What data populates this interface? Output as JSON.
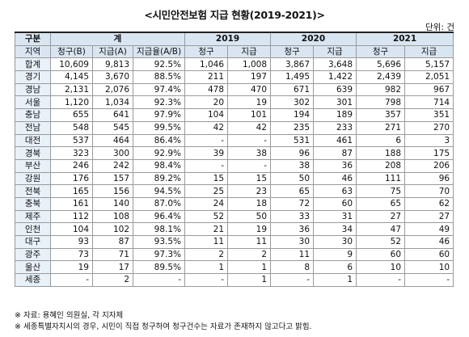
{
  "title": "<시민안전보험 지급 현황(2019-2021)>",
  "unit": "단위: 건",
  "header": {
    "col1": "구분",
    "group_total": "계",
    "group_2019": "2019",
    "group_2020": "2020",
    "group_2021": "2021",
    "region": "지역",
    "claim_b": "청구(B)",
    "pay_a": "지급(A)",
    "rate": "지급율(A/B)",
    "claim": "청구",
    "pay": "지급"
  },
  "rows": [
    {
      "region": "합계",
      "claim_b": "10,609",
      "pay_a": "9,813",
      "rate": "92.5%",
      "c19": "1,046",
      "p19": "1,008",
      "c20": "3,867",
      "p20": "3,648",
      "c21": "5,696",
      "p21": "5,157"
    },
    {
      "region": "경기",
      "claim_b": "4,145",
      "pay_a": "3,670",
      "rate": "88.5%",
      "c19": "211",
      "p19": "197",
      "c20": "1,495",
      "p20": "1,422",
      "c21": "2,439",
      "p21": "2,051"
    },
    {
      "region": "경남",
      "claim_b": "2,131",
      "pay_a": "2,076",
      "rate": "97.4%",
      "c19": "478",
      "p19": "470",
      "c20": "671",
      "p20": "639",
      "c21": "982",
      "p21": "967"
    },
    {
      "region": "서울",
      "claim_b": "1,120",
      "pay_a": "1,034",
      "rate": "92.3%",
      "c19": "20",
      "p19": "19",
      "c20": "302",
      "p20": "301",
      "c21": "798",
      "p21": "714"
    },
    {
      "region": "충남",
      "claim_b": "655",
      "pay_a": "641",
      "rate": "97.9%",
      "c19": "104",
      "p19": "101",
      "c20": "194",
      "p20": "189",
      "c21": "357",
      "p21": "351"
    },
    {
      "region": "전남",
      "claim_b": "548",
      "pay_a": "545",
      "rate": "99.5%",
      "c19": "42",
      "p19": "42",
      "c20": "235",
      "p20": "233",
      "c21": "271",
      "p21": "270"
    },
    {
      "region": "대전",
      "claim_b": "537",
      "pay_a": "464",
      "rate": "86.4%",
      "c19": "-",
      "p19": "-",
      "c20": "531",
      "p20": "461",
      "c21": "6",
      "p21": "3"
    },
    {
      "region": "경북",
      "claim_b": "323",
      "pay_a": "300",
      "rate": "92.9%",
      "c19": "39",
      "p19": "38",
      "c20": "96",
      "p20": "87",
      "c21": "188",
      "p21": "175"
    },
    {
      "region": "부산",
      "claim_b": "246",
      "pay_a": "242",
      "rate": "98.4%",
      "c19": "-",
      "p19": "-",
      "c20": "38",
      "p20": "36",
      "c21": "208",
      "p21": "206"
    },
    {
      "region": "강원",
      "claim_b": "176",
      "pay_a": "157",
      "rate": "89.2%",
      "c19": "15",
      "p19": "15",
      "c20": "50",
      "p20": "46",
      "c21": "111",
      "p21": "96"
    },
    {
      "region": "전북",
      "claim_b": "165",
      "pay_a": "156",
      "rate": "94.5%",
      "c19": "25",
      "p19": "23",
      "c20": "65",
      "p20": "63",
      "c21": "75",
      "p21": "70"
    },
    {
      "region": "충북",
      "claim_b": "161",
      "pay_a": "140",
      "rate": "87.0%",
      "c19": "24",
      "p19": "18",
      "c20": "72",
      "p20": "60",
      "c21": "65",
      "p21": "62"
    },
    {
      "region": "제주",
      "claim_b": "112",
      "pay_a": "108",
      "rate": "96.4%",
      "c19": "52",
      "p19": "50",
      "c20": "33",
      "p20": "31",
      "c21": "27",
      "p21": "27"
    },
    {
      "region": "인천",
      "claim_b": "104",
      "pay_a": "102",
      "rate": "98.1%",
      "c19": "21",
      "p19": "19",
      "c20": "36",
      "p20": "34",
      "c21": "47",
      "p21": "49"
    },
    {
      "region": "대구",
      "claim_b": "93",
      "pay_a": "87",
      "rate": "93.5%",
      "c19": "11",
      "p19": "11",
      "c20": "30",
      "p20": "30",
      "c21": "52",
      "p21": "46"
    },
    {
      "region": "광주",
      "claim_b": "73",
      "pay_a": "71",
      "rate": "97.3%",
      "c19": "2",
      "p19": "2",
      "c20": "11",
      "p20": "9",
      "c21": "60",
      "p21": "60"
    },
    {
      "region": "울산",
      "claim_b": "19",
      "pay_a": "17",
      "rate": "89.5%",
      "c19": "1",
      "p19": "1",
      "c20": "8",
      "p20": "6",
      "c21": "10",
      "p21": "10"
    },
    {
      "region": "세종",
      "claim_b": "-",
      "pay_a": "2",
      "rate": "-",
      "c19": "-",
      "p19": "1",
      "c20": "-",
      "p20": "1",
      "c21": "-",
      "p21": "-"
    }
  ],
  "notes": [
    "※ 자료: 용혜인 의원실, 각 지자체",
    "※ 세종특별자치시의 경우, 시민이 직접 청구하여 청구건수는 자료가 존재하지 않고다고 밝힘."
  ]
}
